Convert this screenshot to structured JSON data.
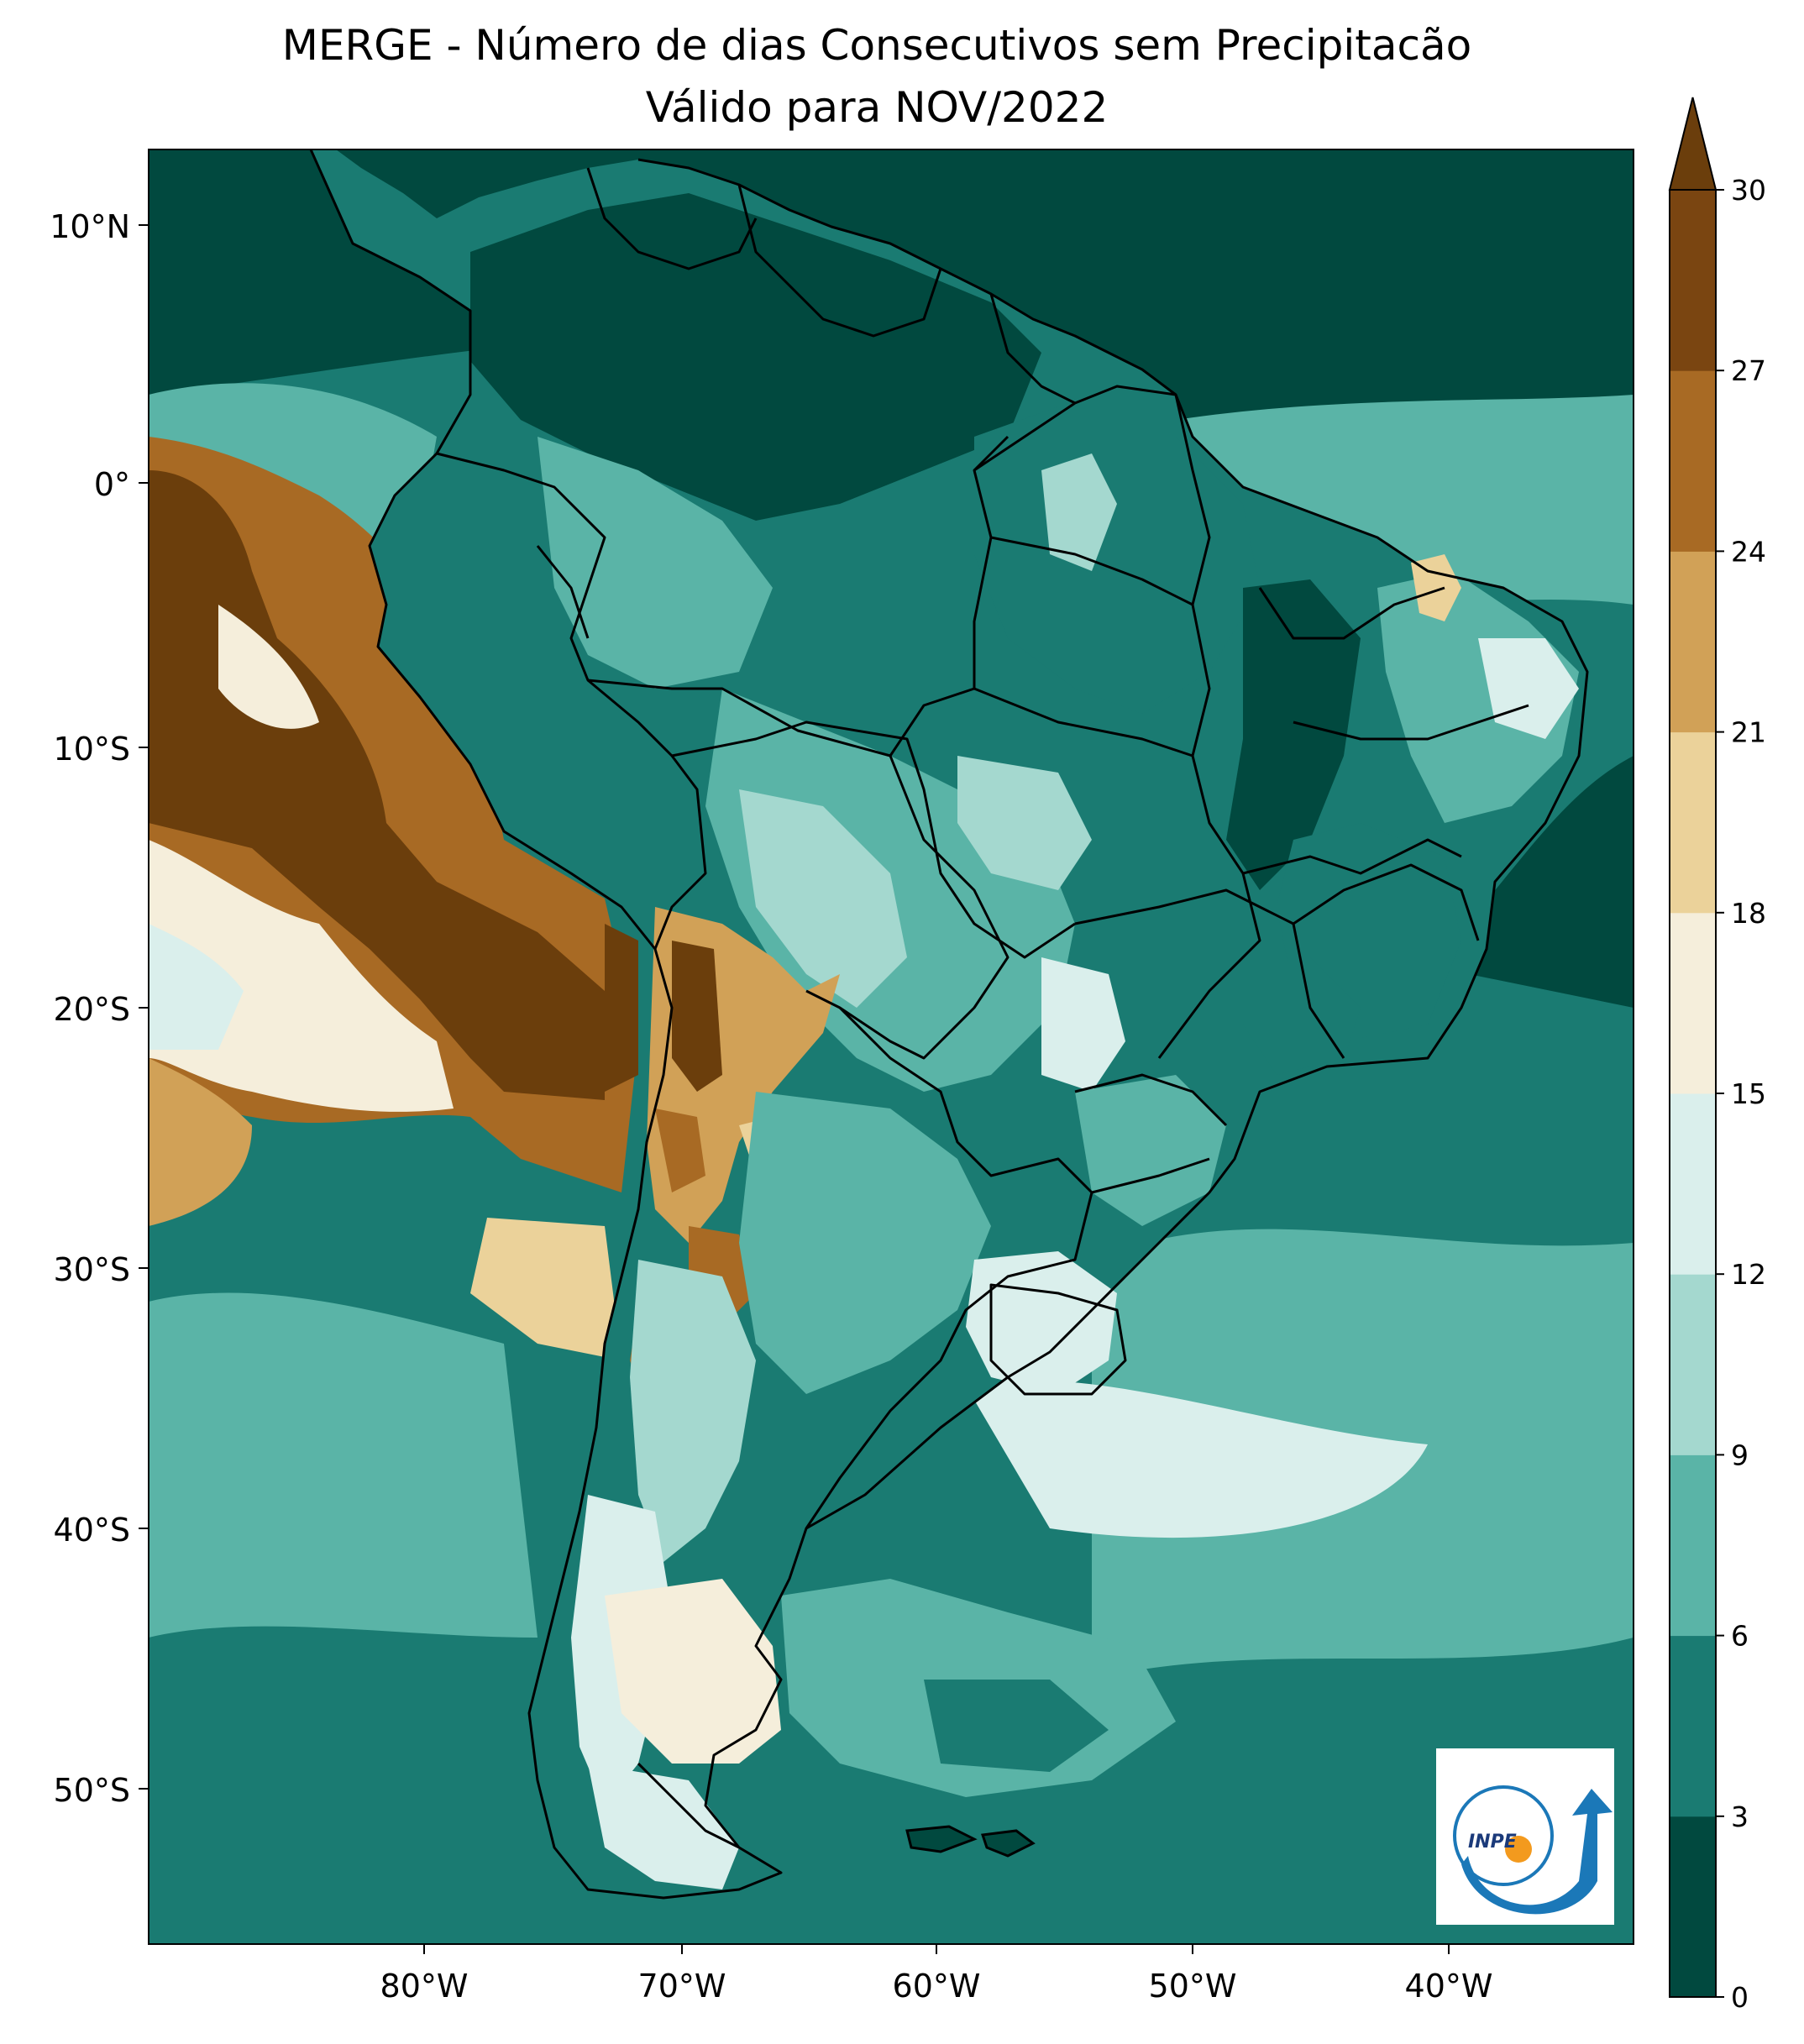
{
  "title_line1": "MERGE - Número de dias Consecutivos sem Precipitacão",
  "title_line2": "Válido para NOV/2022",
  "lat_ticks": [
    "10°N",
    "0°",
    "10°S",
    "20°S",
    "30°S",
    "40°S",
    "50°S"
  ],
  "lon_ticks": [
    "80°W",
    "70°W",
    "60°W",
    "50°W",
    "40°W"
  ],
  "colorbar": {
    "labels": [
      "0",
      "3",
      "6",
      "9",
      "12",
      "15",
      "18",
      "21",
      "24",
      "27",
      "30"
    ],
    "colors": [
      "#01493f",
      "#1a7b72",
      "#5ab4a7",
      "#a4d8cf",
      "#daefec",
      "#f5eedb",
      "#ebd29a",
      "#d1a157",
      "#a86a24",
      "#7a4511",
      "#6b3e0c"
    ],
    "extend": "max"
  },
  "logo_text": "INPE"
}
